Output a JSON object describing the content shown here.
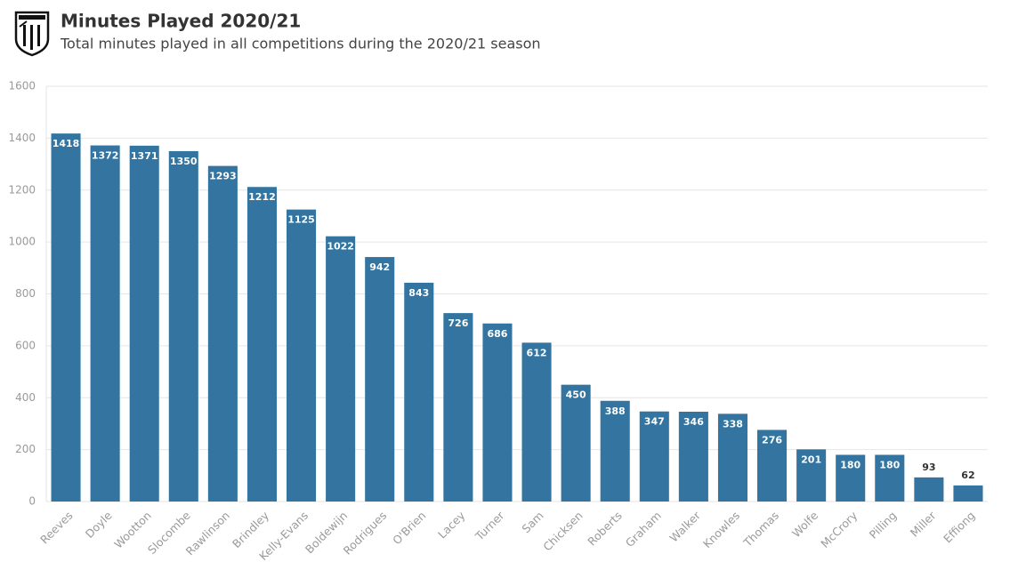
{
  "chart_data": {
    "type": "bar",
    "title": "Minutes Played 2020/21",
    "subtitle": "Total minutes played in all competitions during the 2020/21 season",
    "categories": [
      "Reeves",
      "Doyle",
      "Wootton",
      "Slocombe",
      "Rawlinson",
      "Brindley",
      "Kelly-Evans",
      "Boldewijn",
      "Rodrigues",
      "O'Brien",
      "Lacey",
      "Turner",
      "Sam",
      "Chicksen",
      "Roberts",
      "Graham",
      "Walker",
      "Knowles",
      "Thomas",
      "Wolfe",
      "McCrory",
      "Pilling",
      "Miller",
      "Effiong"
    ],
    "values": [
      1418,
      1372,
      1371,
      1350,
      1293,
      1212,
      1125,
      1022,
      942,
      843,
      726,
      686,
      612,
      450,
      388,
      347,
      346,
      338,
      276,
      201,
      180,
      180,
      93,
      62
    ],
    "color": "#3375a0",
    "ylim": [
      0,
      1600
    ],
    "yticks": [
      0,
      200,
      400,
      600,
      800,
      1000,
      1200,
      1400,
      1600
    ],
    "grid": true
  }
}
